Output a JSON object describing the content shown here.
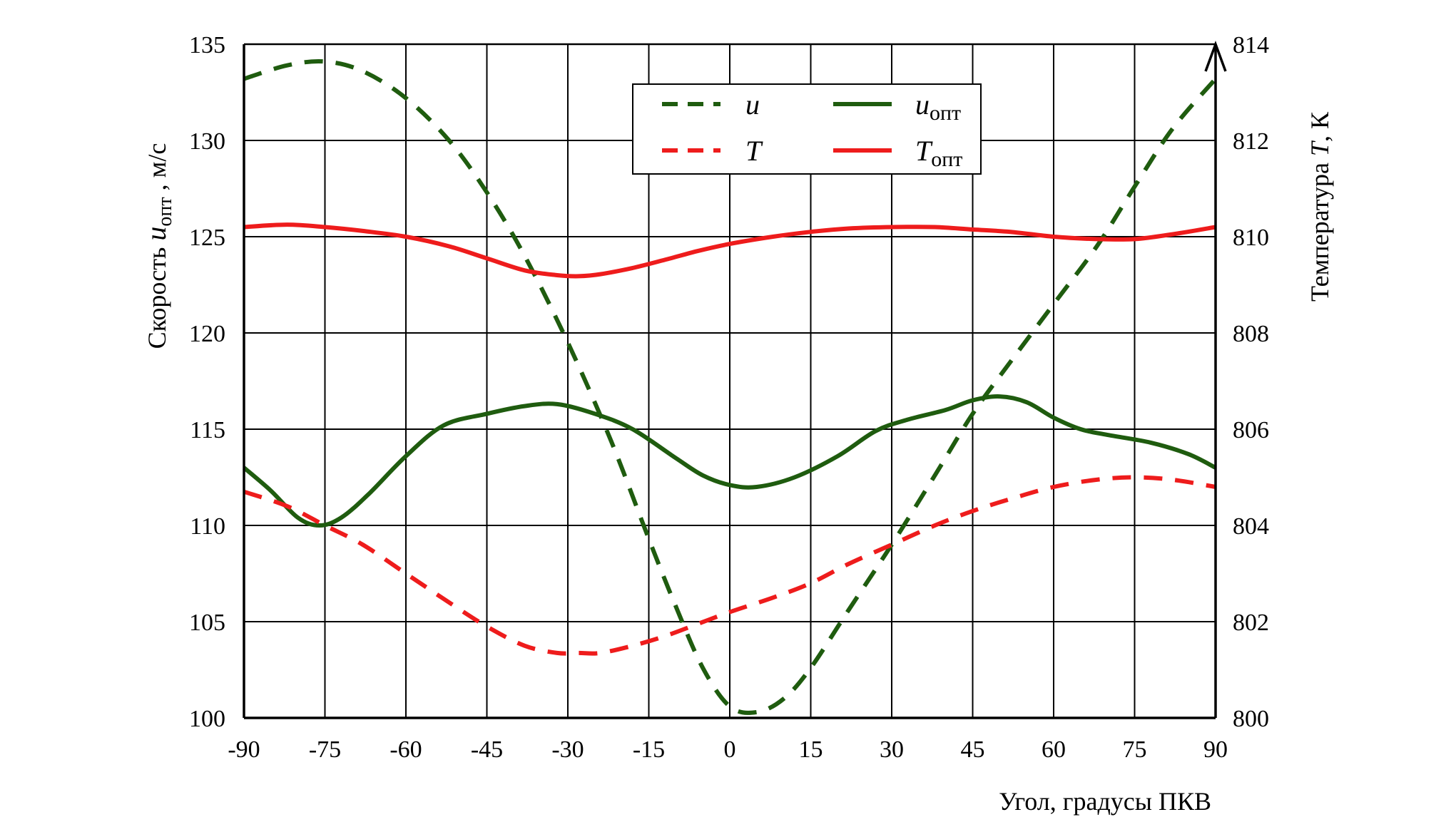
{
  "chart_data": {
    "type": "line",
    "xlabel": "Угол, градусы ПКВ",
    "ylabel_left_prefix": "Скорость ",
    "ylabel_left_var": "u",
    "ylabel_left_sub": "опт",
    "ylabel_left_suffix": " , м/с",
    "ylabel_right_prefix": "Температура ",
    "ylabel_right_var": "T",
    "ylabel_right_suffix": ", К",
    "xlim": [
      -90,
      90
    ],
    "ylim_left": [
      100,
      135
    ],
    "ylim_right": [
      800,
      814
    ],
    "x_ticks": [
      "-90",
      "-75",
      "-60",
      "-45",
      "-30",
      "-15",
      "0",
      "15",
      "30",
      "45",
      "60",
      "75",
      "90"
    ],
    "y_left_ticks": [
      "100",
      "105",
      "110",
      "115",
      "120",
      "125",
      "130",
      "135"
    ],
    "y_right_ticks": [
      "800",
      "802",
      "804",
      "806",
      "808",
      "810",
      "812",
      "814"
    ],
    "grid": true,
    "legend_position": "top-center",
    "series": [
      {
        "name": "u",
        "axis": "left",
        "color": "#1f5c0f",
        "dash": true,
        "x": [
          -90,
          -82,
          -75,
          -68,
          -60,
          -52,
          -45,
          -38,
          -30,
          -22,
          -15,
          -10,
          -5,
          0,
          5,
          10,
          15,
          22,
          30,
          38,
          45,
          52,
          60,
          68,
          75,
          82,
          90
        ],
        "y": [
          133.2,
          133.9,
          134.1,
          133.6,
          132.2,
          130.0,
          127.3,
          124.0,
          119.5,
          114.4,
          109.3,
          105.8,
          102.6,
          100.6,
          100.3,
          101.0,
          102.6,
          105.6,
          109.0,
          112.6,
          115.8,
          118.5,
          121.5,
          124.5,
          127.6,
          130.6,
          133.2
        ]
      },
      {
        "name": "u_opt",
        "axis": "left",
        "color": "#1f5c0f",
        "dash": false,
        "x": [
          -90,
          -85,
          -80,
          -76,
          -72,
          -67,
          -60,
          -53,
          -45,
          -38,
          -32,
          -25,
          -18,
          -10,
          -5,
          0,
          5,
          12,
          20,
          27,
          33,
          40,
          45,
          50,
          55,
          60,
          65,
          70,
          78,
          85,
          90
        ],
        "y": [
          113.0,
          111.8,
          110.4,
          110.0,
          110.4,
          111.6,
          113.6,
          115.2,
          115.8,
          116.2,
          116.3,
          115.8,
          115.0,
          113.5,
          112.6,
          112.1,
          112.0,
          112.5,
          113.6,
          114.9,
          115.5,
          116.0,
          116.5,
          116.7,
          116.4,
          115.6,
          115.0,
          114.7,
          114.3,
          113.7,
          113.0
        ]
      },
      {
        "name": "T",
        "axis": "right",
        "color": "#ee1c1c",
        "dash": true,
        "x": [
          -90,
          -82,
          -75,
          -68,
          -60,
          -52,
          -45,
          -38,
          -32,
          -28,
          -24,
          -18,
          -12,
          -6,
          0,
          8,
          15,
          22,
          30,
          38,
          45,
          52,
          60,
          68,
          75,
          82,
          90
        ],
        "y": [
          804.7,
          804.4,
          804.0,
          803.6,
          803.0,
          802.4,
          801.9,
          801.5,
          801.35,
          801.35,
          801.35,
          801.5,
          801.7,
          801.95,
          802.2,
          802.5,
          802.8,
          803.2,
          803.6,
          804.0,
          804.3,
          804.55,
          804.8,
          804.95,
          805.0,
          804.95,
          804.8
        ]
      },
      {
        "name": "T_opt",
        "axis": "right",
        "color": "#ee1c1c",
        "dash": false,
        "x": [
          -90,
          -82,
          -75,
          -68,
          -60,
          -52,
          -45,
          -38,
          -32,
          -28,
          -24,
          -18,
          -12,
          -6,
          0,
          8,
          15,
          22,
          30,
          38,
          45,
          52,
          60,
          68,
          75,
          82,
          90
        ],
        "y": [
          810.2,
          810.25,
          810.2,
          810.12,
          810.0,
          809.8,
          809.55,
          809.3,
          809.2,
          809.18,
          809.22,
          809.35,
          809.52,
          809.7,
          809.85,
          810.0,
          810.1,
          810.17,
          810.2,
          810.2,
          810.15,
          810.1,
          810.0,
          809.95,
          809.95,
          810.05,
          810.2
        ]
      }
    ],
    "legend": [
      {
        "var": "u",
        "sub": "",
        "color": "#1f5c0f",
        "dash": true
      },
      {
        "var": "u",
        "sub": "опт",
        "color": "#1f5c0f",
        "dash": false
      },
      {
        "var": "T",
        "sub": "",
        "color": "#ee1c1c",
        "dash": true
      },
      {
        "var": "T",
        "sub": "опт",
        "color": "#ee1c1c",
        "dash": false
      }
    ]
  }
}
